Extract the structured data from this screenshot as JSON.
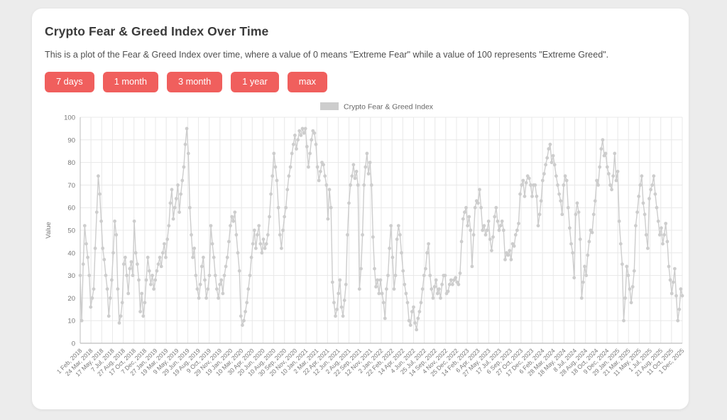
{
  "header": {
    "title": "Crypto Fear & Greed Index Over Time",
    "description": "This is a plot of the Fear & Greed Index over time, where a value of 0 means \"Extreme Fear\" while a value of 100 represents \"Extreme Greed\"."
  },
  "buttons": {
    "items": [
      {
        "label": "7 days"
      },
      {
        "label": "1 month"
      },
      {
        "label": "3 month"
      },
      {
        "label": "1 year"
      },
      {
        "label": "max"
      }
    ],
    "accent_color": "#f05f5d"
  },
  "chart_data": {
    "type": "line",
    "legend": "Crypto Fear & Greed Index",
    "legend_position": "top-center",
    "xlabel": "",
    "ylabel": "Value",
    "ylim": [
      0,
      100
    ],
    "y_ticks": [
      0,
      10,
      20,
      30,
      40,
      50,
      60,
      70,
      80,
      90,
      100
    ],
    "grid": true,
    "series_color": "#cdcdcd",
    "grid_color": "#e8e8e8",
    "axis_color": "#bdbdbd",
    "tick_text_color": "#777777",
    "x_tick_labels": [
      "1 Feb, 2018",
      "24 Mar, 2018",
      "17 May, 2018",
      "7 Jul, 2018",
      "27 Aug, 2018",
      "17 Oct, 2018",
      "7 Dec, 2018",
      "27 Jan, 2019",
      "19 Mar, 2019",
      "9 May, 2019",
      "29 Jun, 2019",
      "19 Aug, 2019",
      "9 Oct, 2019",
      "29 Nov, 2019",
      "19 Jan, 2020",
      "10 Mar, 2020",
      "30 Apr, 2020",
      "20 Jun, 2020",
      "10 Aug, 2020",
      "30 Sep, 2020",
      "20 Nov, 2020",
      "10 Jan, 2021",
      "2 Mar, 2021",
      "22 Apr, 2021",
      "12 Jun, 2021",
      "2 Aug, 2021",
      "22 Sep, 2021",
      "12 Nov, 2021",
      "2 Jan, 2022",
      "22 Feb, 2022",
      "14 Apr, 2022",
      "4 Jun, 2022",
      "25 Jul, 2022",
      "14 Sep, 2022",
      "4 Nov, 2022",
      "25 Dec, 2022",
      "14 Feb, 2023",
      "6 Apr, 2023",
      "27 May, 2023",
      "17 Jul, 2023",
      "6 Sep, 2023",
      "27 Oct, 2023",
      "17 Dec, 2023",
      "6 Feb, 2024",
      "28 Mar, 2024",
      "18 May, 2024",
      "8 Jul, 2024",
      "28 Aug, 2024",
      "18 Oct, 2024",
      "9 Dec, 2024",
      "29 Jan, 2025",
      "21 Mar, 2025",
      "11 May, 2025",
      "1 Jul, 2025",
      "21 Aug, 2025",
      "11 Oct, 2025",
      "1 Dec, 2025"
    ],
    "series": [
      {
        "name": "Crypto Fear & Greed Index",
        "start_label": "1 Feb, 2018",
        "end_label": "1 Dec, 2025",
        "sampling_days": 7,
        "values": [
          30,
          10,
          35,
          52,
          44,
          38,
          30,
          16,
          20,
          24,
          42,
          58,
          74,
          66,
          54,
          42,
          37,
          30,
          24,
          12,
          20,
          28,
          40,
          54,
          48,
          24,
          9,
          12,
          18,
          35,
          38,
          30,
          22,
          33,
          36,
          30,
          54,
          40,
          35,
          28,
          14,
          22,
          12,
          18,
          28,
          38,
          32,
          26,
          30,
          24,
          28,
          32,
          35,
          38,
          34,
          40,
          44,
          38,
          46,
          52,
          62,
          68,
          55,
          60,
          64,
          70,
          58,
          66,
          72,
          78,
          88,
          95,
          84,
          60,
          48,
          38,
          42,
          30,
          24,
          20,
          26,
          34,
          38,
          28,
          20,
          24,
          30,
          52,
          44,
          38,
          30,
          24,
          20,
          26,
          28,
          22,
          30,
          34,
          38,
          45,
          52,
          56,
          54,
          58,
          48,
          40,
          32,
          12,
          8,
          10,
          14,
          18,
          24,
          30,
          38,
          44,
          50,
          42,
          48,
          52,
          44,
          40,
          46,
          42,
          44,
          48,
          56,
          66,
          74,
          84,
          78,
          72,
          60,
          48,
          42,
          50,
          56,
          60,
          68,
          74,
          78,
          84,
          88,
          92,
          86,
          90,
          94,
          92,
          95,
          93,
          95,
          87,
          78,
          84,
          90,
          94,
          93,
          88,
          78,
          72,
          76,
          80,
          79,
          74,
          70,
          55,
          68,
          60,
          27,
          18,
          12,
          15,
          22,
          28,
          16,
          12,
          19,
          26,
          48,
          62,
          70,
          74,
          79,
          73,
          76,
          70,
          24,
          33,
          48,
          70,
          78,
          84,
          75,
          80,
          70,
          47,
          33,
          25,
          28,
          22,
          28,
          22,
          18,
          11,
          24,
          30,
          42,
          52,
          38,
          24,
          30,
          46,
          52,
          48,
          40,
          32,
          26,
          22,
          18,
          10,
          8,
          14,
          16,
          9,
          6,
          11,
          14,
          18,
          24,
          30,
          33,
          40,
          44,
          30,
          24,
          20,
          25,
          28,
          22,
          24,
          20,
          26,
          30,
          30,
          22,
          23,
          26,
          28,
          26,
          28,
          29,
          27,
          26,
          31,
          45,
          55,
          58,
          60,
          52,
          56,
          50,
          34,
          48,
          60,
          63,
          62,
          68,
          60,
          50,
          52,
          48,
          50,
          54,
          46,
          41,
          47,
          56,
          60,
          54,
          50,
          52,
          54,
          50,
          37,
          40,
          39,
          41,
          37,
          44,
          43,
          48,
          50,
          53,
          66,
          70,
          72,
          65,
          71,
          74,
          73,
          70,
          65,
          70,
          70,
          65,
          52,
          57,
          63,
          72,
          75,
          79,
          82,
          86,
          88,
          80,
          83,
          79,
          74,
          70,
          66,
          63,
          57,
          70,
          74,
          72,
          60,
          51,
          44,
          40,
          29,
          57,
          62,
          58,
          46,
          20,
          27,
          34,
          30,
          39,
          45,
          50,
          49,
          57,
          63,
          72,
          70,
          78,
          86,
          90,
          83,
          84,
          78,
          75,
          70,
          68,
          74,
          84,
          72,
          76,
          54,
          44,
          35,
          10,
          20,
          34,
          30,
          24,
          18,
          25,
          32,
          52,
          58,
          65,
          70,
          74,
          62,
          57,
          48,
          42,
          64,
          68,
          70,
          74,
          66,
          60,
          54,
          48,
          51,
          44,
          48,
          53,
          45,
          34,
          28,
          22,
          27,
          33,
          21,
          10,
          15,
          24,
          21
        ]
      }
    ]
  }
}
